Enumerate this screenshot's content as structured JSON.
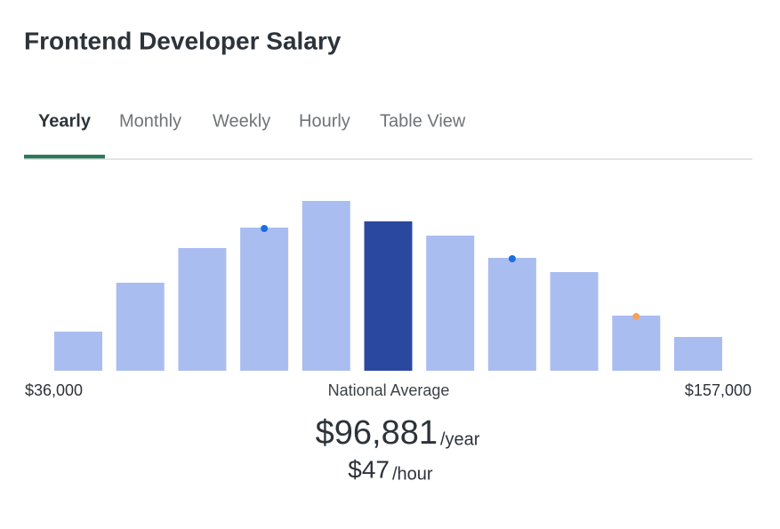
{
  "header": {
    "title": "Frontend Developer Salary"
  },
  "tabs": [
    {
      "label": "Yearly",
      "active": true
    },
    {
      "label": "Monthly",
      "active": false
    },
    {
      "label": "Weekly",
      "active": false
    },
    {
      "label": "Hourly",
      "active": false
    },
    {
      "label": "Table View",
      "active": false
    }
  ],
  "chart_data": {
    "type": "bar",
    "values": [
      44,
      99,
      138,
      161,
      191,
      168,
      152,
      127,
      111,
      62,
      38
    ],
    "color": "#aabdf0",
    "highlight": 5,
    "highlight_color": "#2a48a0",
    "markers": [
      {
        "bar": 3,
        "color": "#1a6fe0"
      },
      {
        "bar": 7,
        "color": "#1a6fe0"
      },
      {
        "bar": 9,
        "color": "#f5a25d"
      }
    ],
    "min_label": "$36,000",
    "max_label": "$157,000"
  },
  "average": {
    "label": "National Average",
    "yearly": "$96,881",
    "yearly_unit": "/year",
    "hourly": "$47",
    "hourly_unit": "/hour"
  }
}
